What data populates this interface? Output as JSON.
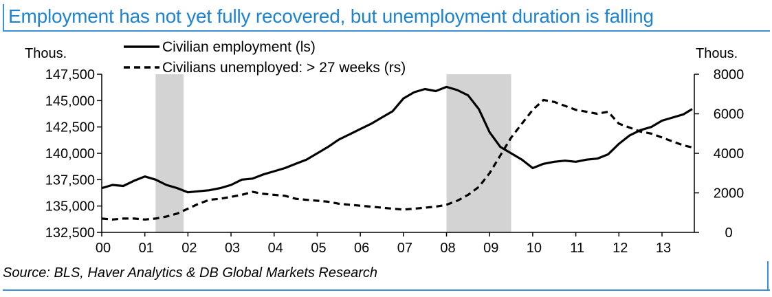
{
  "title": "Employment has not yet fully recovered, but unemployment duration is falling",
  "source": "Source: BLS, Haver Analytics & DB Global Markets Research",
  "colors": {
    "accent": "#1e84d2",
    "recession": "#d3d3d3",
    "line": "#000000"
  },
  "chart_data": {
    "type": "line",
    "title": "Employment has not yet fully recovered, but unemployment duration is falling",
    "left_axis": {
      "unit": "Thous.",
      "range": [
        132500,
        147500
      ],
      "ticks": [
        "132,500",
        "135,000",
        "137,500",
        "140,000",
        "142,500",
        "145,000",
        "147,500"
      ]
    },
    "right_axis": {
      "unit": "Thous.",
      "range": [
        0,
        8000
      ],
      "ticks": [
        "0",
        "2000",
        "4000",
        "6000",
        "8000"
      ]
    },
    "x_axis": {
      "range": [
        2000,
        2013.75
      ],
      "ticks": [
        "00",
        "01",
        "02",
        "03",
        "04",
        "05",
        "06",
        "07",
        "08",
        "09",
        "10",
        "11",
        "12",
        "13"
      ]
    },
    "recessions": [
      [
        2001.25,
        2001.9
      ],
      [
        2008.0,
        2009.5
      ]
    ],
    "legend_placement": "top-left",
    "series": [
      {
        "name": "Civilian employment (ls)",
        "axis": "left",
        "style": "solid",
        "x": [
          2000.0,
          2000.25,
          2000.5,
          2000.75,
          2001.0,
          2001.25,
          2001.5,
          2001.75,
          2002.0,
          2002.25,
          2002.5,
          2002.75,
          2003.0,
          2003.25,
          2003.5,
          2003.75,
          2004.0,
          2004.25,
          2004.5,
          2004.75,
          2005.0,
          2005.25,
          2005.5,
          2005.75,
          2006.0,
          2006.25,
          2006.5,
          2006.75,
          2007.0,
          2007.25,
          2007.5,
          2007.75,
          2008.0,
          2008.25,
          2008.5,
          2008.75,
          2009.0,
          2009.25,
          2009.5,
          2009.75,
          2010.0,
          2010.25,
          2010.5,
          2010.75,
          2011.0,
          2011.25,
          2011.5,
          2011.75,
          2012.0,
          2012.25,
          2012.5,
          2012.75,
          2013.0,
          2013.25,
          2013.5,
          2013.7
        ],
        "values": [
          136700,
          137000,
          136900,
          137400,
          137800,
          137500,
          137000,
          136700,
          136300,
          136400,
          136500,
          136700,
          137000,
          137500,
          137600,
          138000,
          138300,
          138600,
          139000,
          139400,
          140000,
          140600,
          141300,
          141800,
          142300,
          142800,
          143400,
          144000,
          145200,
          145800,
          146100,
          145900,
          146300,
          146000,
          145500,
          144200,
          142000,
          140600,
          140000,
          139400,
          138600,
          139000,
          139200,
          139300,
          139200,
          139400,
          139500,
          139900,
          140900,
          141700,
          142200,
          142500,
          143100,
          143400,
          143700,
          144200
        ]
      },
      {
        "name": "Civilians unemployed: > 27 weeks (rs)",
        "axis": "right",
        "style": "dashed",
        "x": [
          2000.0,
          2000.25,
          2000.5,
          2000.75,
          2001.0,
          2001.25,
          2001.5,
          2001.75,
          2002.0,
          2002.25,
          2002.5,
          2002.75,
          2003.0,
          2003.25,
          2003.5,
          2003.75,
          2004.0,
          2004.25,
          2004.5,
          2004.75,
          2005.0,
          2005.25,
          2005.5,
          2005.75,
          2006.0,
          2006.25,
          2006.5,
          2006.75,
          2007.0,
          2007.25,
          2007.5,
          2007.75,
          2008.0,
          2008.25,
          2008.5,
          2008.75,
          2009.0,
          2009.25,
          2009.5,
          2009.75,
          2010.0,
          2010.25,
          2010.5,
          2010.75,
          2011.0,
          2011.25,
          2011.5,
          2011.75,
          2012.0,
          2012.25,
          2012.5,
          2012.75,
          2013.0,
          2013.25,
          2013.5,
          2013.7
        ],
        "values": [
          700,
          650,
          700,
          700,
          650,
          700,
          800,
          950,
          1200,
          1450,
          1650,
          1700,
          1800,
          1900,
          2050,
          1950,
          1900,
          1850,
          1700,
          1650,
          1600,
          1550,
          1450,
          1400,
          1350,
          1300,
          1250,
          1200,
          1150,
          1200,
          1250,
          1300,
          1400,
          1600,
          1900,
          2300,
          3000,
          3900,
          4800,
          5500,
          6200,
          6700,
          6600,
          6400,
          6200,
          6100,
          6000,
          6100,
          5500,
          5300,
          5100,
          5000,
          4800,
          4600,
          4400,
          4300
        ]
      }
    ]
  }
}
